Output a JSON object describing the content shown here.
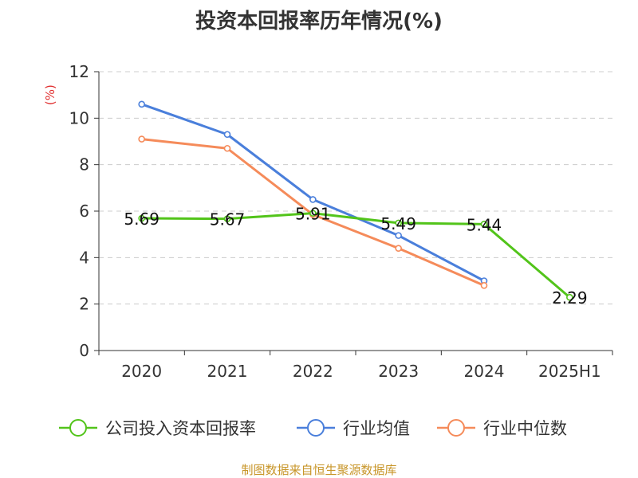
{
  "title": "投资本回报率历年情况(%)",
  "footer": "制图数据来自恒生聚源数据库",
  "chart_data": {
    "type": "line",
    "title": "投资本回报率历年情况(%)",
    "ylabel": "(%)",
    "xlabel": "",
    "categories": [
      "2020",
      "2021",
      "2022",
      "2023",
      "2024",
      "2025H1"
    ],
    "ylim": [
      0,
      12
    ],
    "yticks": [
      0,
      2,
      4,
      6,
      8,
      10,
      12
    ],
    "grid": true,
    "legend_position": "bottom",
    "series": [
      {
        "name": "公司投入资本回报率",
        "color": "#52c41a",
        "values": [
          5.69,
          5.67,
          5.91,
          5.49,
          5.44,
          2.29
        ],
        "labels": [
          "5.69",
          "5.67",
          "5.91",
          "5.49",
          "5.44",
          "2.29"
        ]
      },
      {
        "name": "行业均值",
        "color": "#4a7fdb",
        "values": [
          10.6,
          9.3,
          6.5,
          4.95,
          3.0,
          null
        ]
      },
      {
        "name": "行业中位数",
        "color": "#f58b5a",
        "values": [
          9.1,
          8.7,
          5.85,
          4.4,
          2.8,
          null
        ]
      }
    ]
  }
}
